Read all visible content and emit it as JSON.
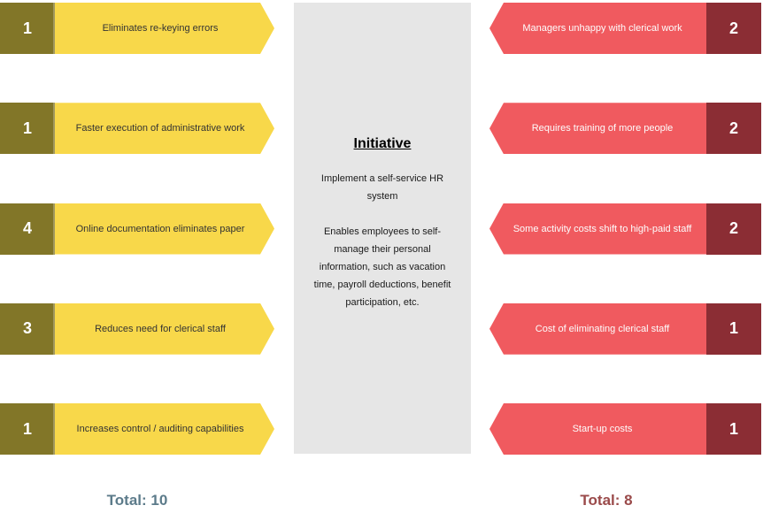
{
  "diagram_type": "force-field-analysis",
  "colors": {
    "driving_arrow": "#F8D84A",
    "driving_badge": "#827628",
    "restraining_arrow": "#F05A5F",
    "restraining_badge": "#8B2D34",
    "initiative_box_bg": "#E6E6E6",
    "driving_total_text": "#5C7B8A",
    "restraining_total_text": "#9A4A4A"
  },
  "initiative": {
    "title": "Initiative",
    "summary": "Implement a self-service HR system",
    "description": "Enables employees to self-manage their personal information, such as vacation time, payroll deductions, benefit participation, etc."
  },
  "driving": {
    "items": [
      {
        "score": 1,
        "label": "Eliminates re-keying errors"
      },
      {
        "score": 1,
        "label": "Faster execution of administrative work"
      },
      {
        "score": 4,
        "label": "Online documentation eliminates paper"
      },
      {
        "score": 3,
        "label": "Reduces need for clerical staff"
      },
      {
        "score": 1,
        "label": "Increases control / auditing capabilities"
      }
    ],
    "total_label": "Total: 10"
  },
  "restraining": {
    "items": [
      {
        "score": 2,
        "label": "Managers unhappy with clerical work"
      },
      {
        "score": 2,
        "label": "Requires training of more people"
      },
      {
        "score": 2,
        "label": "Some activity costs shift to high-paid staff"
      },
      {
        "score": 1,
        "label": "Cost of eliminating clerical staff"
      },
      {
        "score": 1,
        "label": "Start-up costs"
      }
    ],
    "total_label": "Total: 8"
  }
}
